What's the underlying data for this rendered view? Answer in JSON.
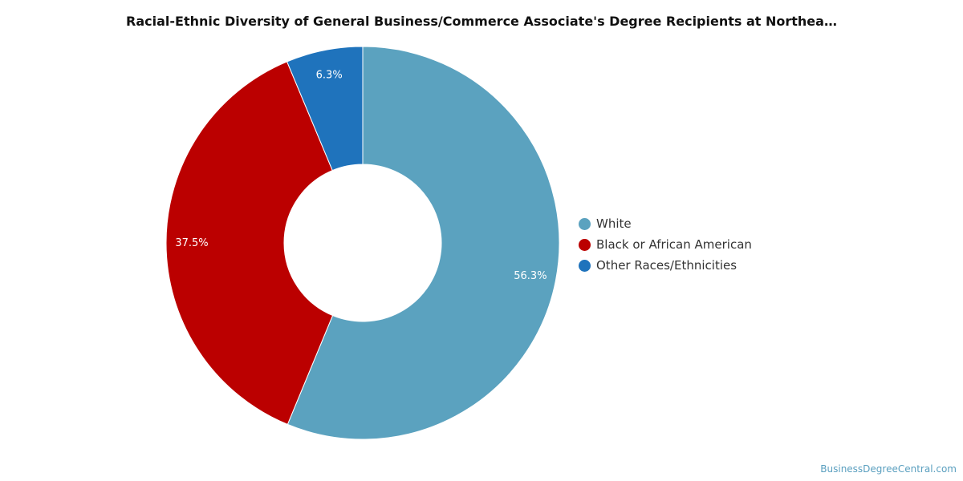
{
  "chart_data": {
    "type": "pie",
    "title": "Racial-Ethnic Diversity of General Business/Commerce Associate's Degree Recipients at Northea…",
    "donut": true,
    "legend_position": "right",
    "slices": [
      {
        "label": "White",
        "value": 56.3,
        "display": "56.3%",
        "color": "#5ba2bf"
      },
      {
        "label": "Black or African American",
        "value": 37.5,
        "display": "37.5%",
        "color": "#bb0000"
      },
      {
        "label": "Other Races/Ethnicities",
        "value": 6.3,
        "display": "6.3%",
        "color": "#1f73bc"
      }
    ]
  },
  "watermark": "BusinessDegreeCentral.com"
}
